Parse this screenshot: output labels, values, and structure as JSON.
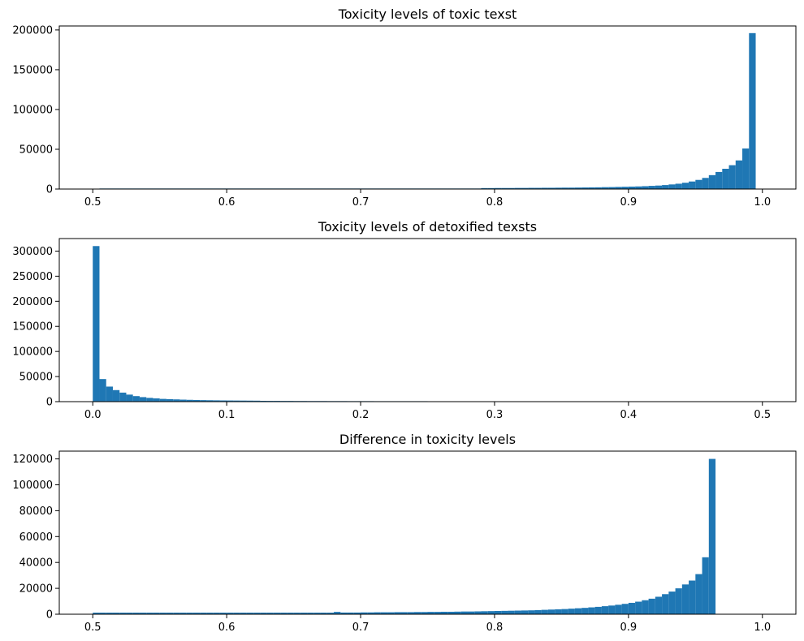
{
  "chart_data": [
    {
      "type": "bar",
      "title": "Toxicity levels of toxic texst",
      "xlabel": "",
      "ylabel": "",
      "xlim": [
        0.475,
        1.025
      ],
      "ylim": [
        0,
        205000
      ],
      "x_ticks": [
        0.5,
        0.6,
        0.7,
        0.8,
        0.9,
        1.0
      ],
      "x_tick_labels": [
        "0.5",
        "0.6",
        "0.7",
        "0.8",
        "0.9",
        "1.0"
      ],
      "y_ticks": [
        0,
        50000,
        100000,
        150000,
        200000
      ],
      "y_tick_labels": [
        "0",
        "50000",
        "100000",
        "150000",
        "200000"
      ],
      "bin_start": 0.5,
      "bin_width": 0.005,
      "values": [
        300,
        700,
        700,
        700,
        700,
        700,
        700,
        700,
        700,
        700,
        700,
        700,
        700,
        700,
        700,
        700,
        700,
        700,
        700,
        700,
        700,
        700,
        700,
        700,
        700,
        700,
        700,
        700,
        700,
        700,
        700,
        700,
        700,
        700,
        700,
        700,
        700,
        700,
        700,
        700,
        700,
        700,
        700,
        700,
        700,
        700,
        700,
        700,
        700,
        700,
        700,
        700,
        700,
        700,
        700,
        700,
        700,
        700,
        1200,
        1200,
        1300,
        1300,
        1300,
        1400,
        1400,
        1500,
        1500,
        1600,
        1600,
        1700,
        1800,
        1800,
        1900,
        2000,
        2100,
        2200,
        2400,
        2500,
        2700,
        2900,
        3100,
        3300,
        3600,
        4000,
        4400,
        5000,
        5800,
        6700,
        7900,
        9500,
        11500,
        14000,
        17500,
        21500,
        25500,
        30000,
        36000,
        51000,
        196000
      ],
      "bar_color": "#1f77b4",
      "grid": false
    },
    {
      "type": "bar",
      "title": "Toxicity levels of detoxified texsts",
      "xlabel": "",
      "ylabel": "",
      "xlim": [
        -0.025,
        0.525
      ],
      "ylim": [
        0,
        325000
      ],
      "x_ticks": [
        0.0,
        0.1,
        0.2,
        0.3,
        0.4,
        0.5
      ],
      "x_tick_labels": [
        "0.0",
        "0.1",
        "0.2",
        "0.3",
        "0.4",
        "0.5"
      ],
      "y_ticks": [
        0,
        50000,
        100000,
        150000,
        200000,
        250000,
        300000
      ],
      "y_tick_labels": [
        "0",
        "50000",
        "100000",
        "150000",
        "200000",
        "250000",
        "300000"
      ],
      "bin_start": 0.0,
      "bin_width": 0.005,
      "values": [
        310000,
        45000,
        30000,
        23000,
        18000,
        14000,
        11000,
        9000,
        7500,
        6500,
        5500,
        5000,
        4500,
        4000,
        3600,
        3300,
        3000,
        2800,
        2600,
        2400,
        2300,
        2200,
        2100,
        2000,
        1900,
        1600,
        1500,
        1500,
        1400,
        1400,
        1300,
        1300,
        1200,
        1200,
        1200,
        1100,
        1100,
        1100,
        1000,
        1000,
        1000,
        1000,
        900,
        900,
        900,
        900,
        900,
        900,
        900,
        900,
        800,
        800,
        800,
        800,
        800,
        800,
        800,
        800,
        800,
        800,
        800,
        800,
        800,
        800,
        800,
        800,
        800,
        800,
        800,
        800,
        800,
        800,
        800,
        800,
        800,
        800,
        800,
        800,
        800,
        800,
        800,
        800,
        800,
        800,
        800,
        800,
        800,
        800,
        800,
        800,
        800,
        800,
        800,
        800,
        800,
        800,
        800,
        800,
        0
      ],
      "bar_color": "#1f77b4",
      "grid": false
    },
    {
      "type": "bar",
      "title": "Difference in toxicity levels",
      "xlabel": "",
      "ylabel": "",
      "xlim": [
        0.475,
        1.025
      ],
      "ylim": [
        0,
        126000
      ],
      "x_ticks": [
        0.5,
        0.6,
        0.7,
        0.8,
        0.9,
        1.0
      ],
      "x_tick_labels": [
        "0.5",
        "0.6",
        "0.7",
        "0.8",
        "0.9",
        "1.0"
      ],
      "y_ticks": [
        0,
        20000,
        40000,
        60000,
        80000,
        100000,
        120000
      ],
      "y_tick_labels": [
        "0",
        "20000",
        "40000",
        "60000",
        "80000",
        "100000",
        "120000"
      ],
      "bin_start": 0.5,
      "bin_width": 0.005,
      "values": [
        1200,
        1200,
        1200,
        1200,
        1200,
        1200,
        1200,
        1200,
        1200,
        1200,
        1200,
        1200,
        1200,
        1200,
        1200,
        1200,
        1200,
        1200,
        1200,
        1200,
        1200,
        1200,
        1200,
        1200,
        1200,
        1200,
        1200,
        1200,
        1200,
        1200,
        1200,
        1200,
        1200,
        1200,
        1200,
        1200,
        1800,
        1300,
        1300,
        1300,
        1400,
        1400,
        1500,
        1500,
        1500,
        1600,
        1600,
        1600,
        1700,
        1700,
        1800,
        1800,
        1900,
        1900,
        2000,
        2100,
        2100,
        2200,
        2300,
        2400,
        2500,
        2600,
        2700,
        2800,
        2900,
        3000,
        3200,
        3400,
        3600,
        3800,
        4000,
        4300,
        4600,
        4900,
        5300,
        5700,
        6200,
        6700,
        7300,
        8000,
        8800,
        9700,
        10800,
        12000,
        13500,
        15500,
        17500,
        20000,
        23000,
        26000,
        31000,
        44000,
        120000
      ],
      "bar_color": "#1f77b4",
      "grid": false
    }
  ]
}
